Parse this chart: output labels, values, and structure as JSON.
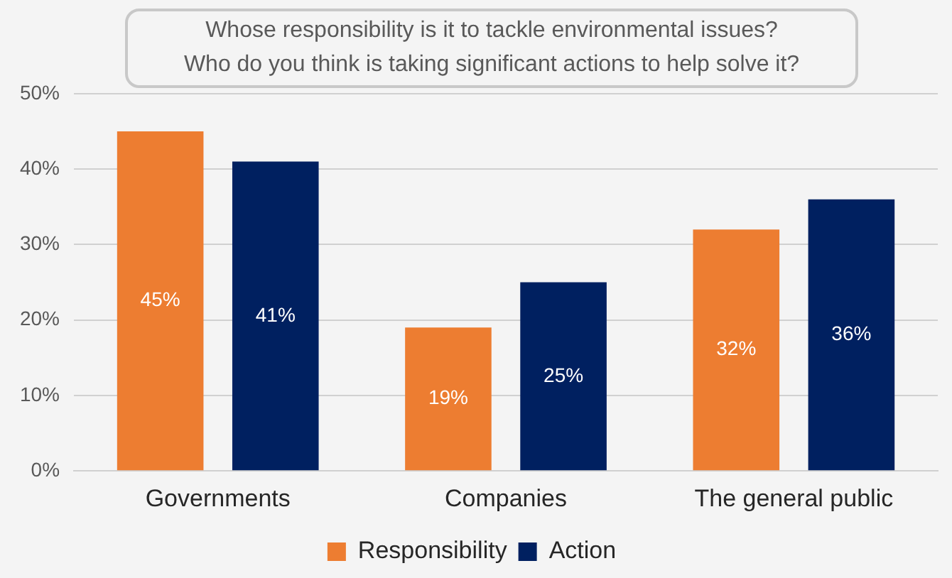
{
  "chart_data": {
    "type": "bar",
    "title": "Whose responsibility is it to tackle environmental issues?\nWho do you think is taking significant actions to help solve it?",
    "categories": [
      "Governments",
      "Companies",
      "The general public"
    ],
    "series": [
      {
        "name": "Responsibility",
        "color": "#ed7d31",
        "values": [
          45,
          19,
          32
        ],
        "value_labels": [
          "45%",
          "19%",
          "32%"
        ]
      },
      {
        "name": "Action",
        "color": "#002060",
        "values": [
          41,
          25,
          36
        ],
        "value_labels": [
          "41%",
          "25%",
          "36%"
        ]
      }
    ],
    "ylim": [
      0,
      50
    ],
    "yticks": [
      {
        "value": 0,
        "label": "0%"
      },
      {
        "value": 10,
        "label": "10%"
      },
      {
        "value": 20,
        "label": "20%"
      },
      {
        "value": 30,
        "label": "30%"
      },
      {
        "value": 40,
        "label": "40%"
      },
      {
        "value": 50,
        "label": "50%"
      }
    ],
    "grid": "y",
    "legend": "bottom"
  }
}
